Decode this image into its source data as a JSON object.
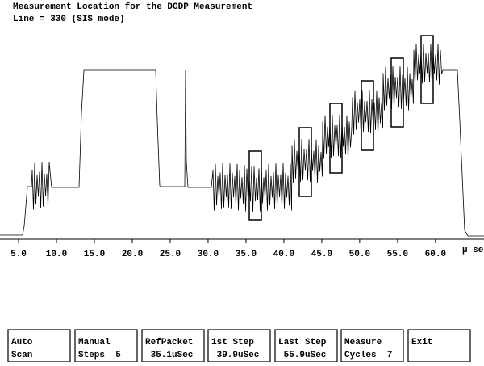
{
  "screen": {
    "title": "Measurement Location for the DGDP Measurement",
    "subtitle": "Line = 330 (SIS mode)",
    "axis": {
      "unit": "µ sec",
      "xlim": [
        2.55,
        66.4
      ],
      "xticks": [
        {
          "value": 5,
          "label": "5.0"
        },
        {
          "value": 10,
          "label": "10.0"
        },
        {
          "value": 15,
          "label": "15.0"
        },
        {
          "value": 20,
          "label": "20.0"
        },
        {
          "value": 25,
          "label": "25.0"
        },
        {
          "value": 30,
          "label": "30.0"
        },
        {
          "value": 35,
          "label": "35.0"
        },
        {
          "value": 40,
          "label": "40.0"
        },
        {
          "value": 45,
          "label": "45.0"
        },
        {
          "value": 50,
          "label": "50.0"
        },
        {
          "value": 55,
          "label": "55.0"
        },
        {
          "value": 60,
          "label": "60.0"
        }
      ]
    },
    "buttons": [
      {
        "line1": "Auto",
        "line2": "Scan"
      },
      {
        "line1": "Manual",
        "line2": "Steps  5"
      },
      {
        "line1": "RefPacket",
        "line2": " 35.1uSec"
      },
      {
        "line1": "1st Step",
        "line2": " 39.9uSec"
      },
      {
        "line1": "Last Step",
        "line2": " 55.9uSec"
      },
      {
        "line1": "Measure",
        "line2": "Cycles  7"
      },
      {
        "line1": "Exit",
        "line2": ""
      }
    ]
  }
}
